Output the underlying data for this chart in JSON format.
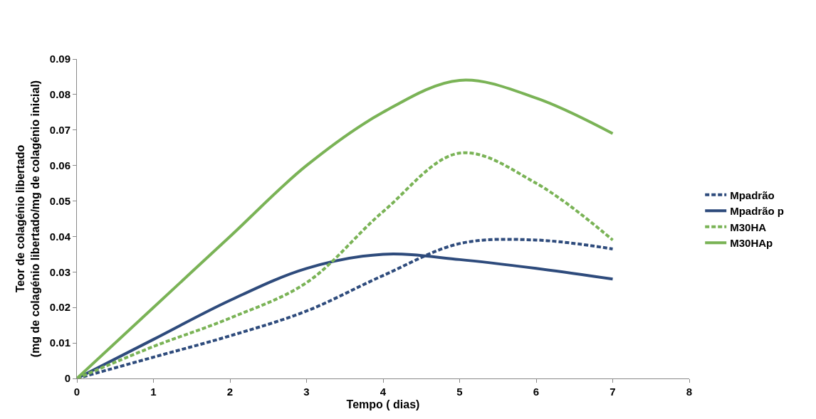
{
  "chart_data": {
    "type": "line",
    "xlabel": "Tempo ( dias)",
    "ylabel": "Teor de colagénio libertado\n(mg de colagénio libertado/mg de colagénio inicial)",
    "x": [
      0,
      1,
      2,
      3,
      4,
      5,
      6,
      7
    ],
    "series": [
      {
        "name": "Mpadrão",
        "color": "#2e4b7c",
        "line_style": "dashed",
        "values": [
          0,
          0.006,
          0.012,
          0.019,
          0.029,
          0.038,
          0.039,
          0.0365
        ]
      },
      {
        "name": "Mpadrão p",
        "color": "#2e4b7c",
        "line_style": "solid",
        "values": [
          0,
          0.011,
          0.022,
          0.031,
          0.035,
          0.0335,
          0.031,
          0.028
        ]
      },
      {
        "name": "M30HA",
        "color": "#7ab356",
        "line_style": "dashed",
        "values": [
          0,
          0.009,
          0.017,
          0.027,
          0.047,
          0.0635,
          0.055,
          0.039
        ]
      },
      {
        "name": "M30HAp",
        "color": "#7ab356",
        "line_style": "solid",
        "values": [
          0,
          0.02,
          0.04,
          0.06,
          0.075,
          0.084,
          0.079,
          0.069
        ]
      }
    ],
    "xlim": [
      0,
      8
    ],
    "xticks": [
      0,
      1,
      2,
      3,
      4,
      5,
      6,
      7,
      8
    ],
    "ylim": [
      0,
      0.09
    ],
    "yticks": [
      0,
      0.01,
      0.02,
      0.03,
      0.04,
      0.05,
      0.06,
      0.07,
      0.08,
      0.09
    ],
    "grid": false,
    "legend": "right",
    "marker": "none"
  }
}
